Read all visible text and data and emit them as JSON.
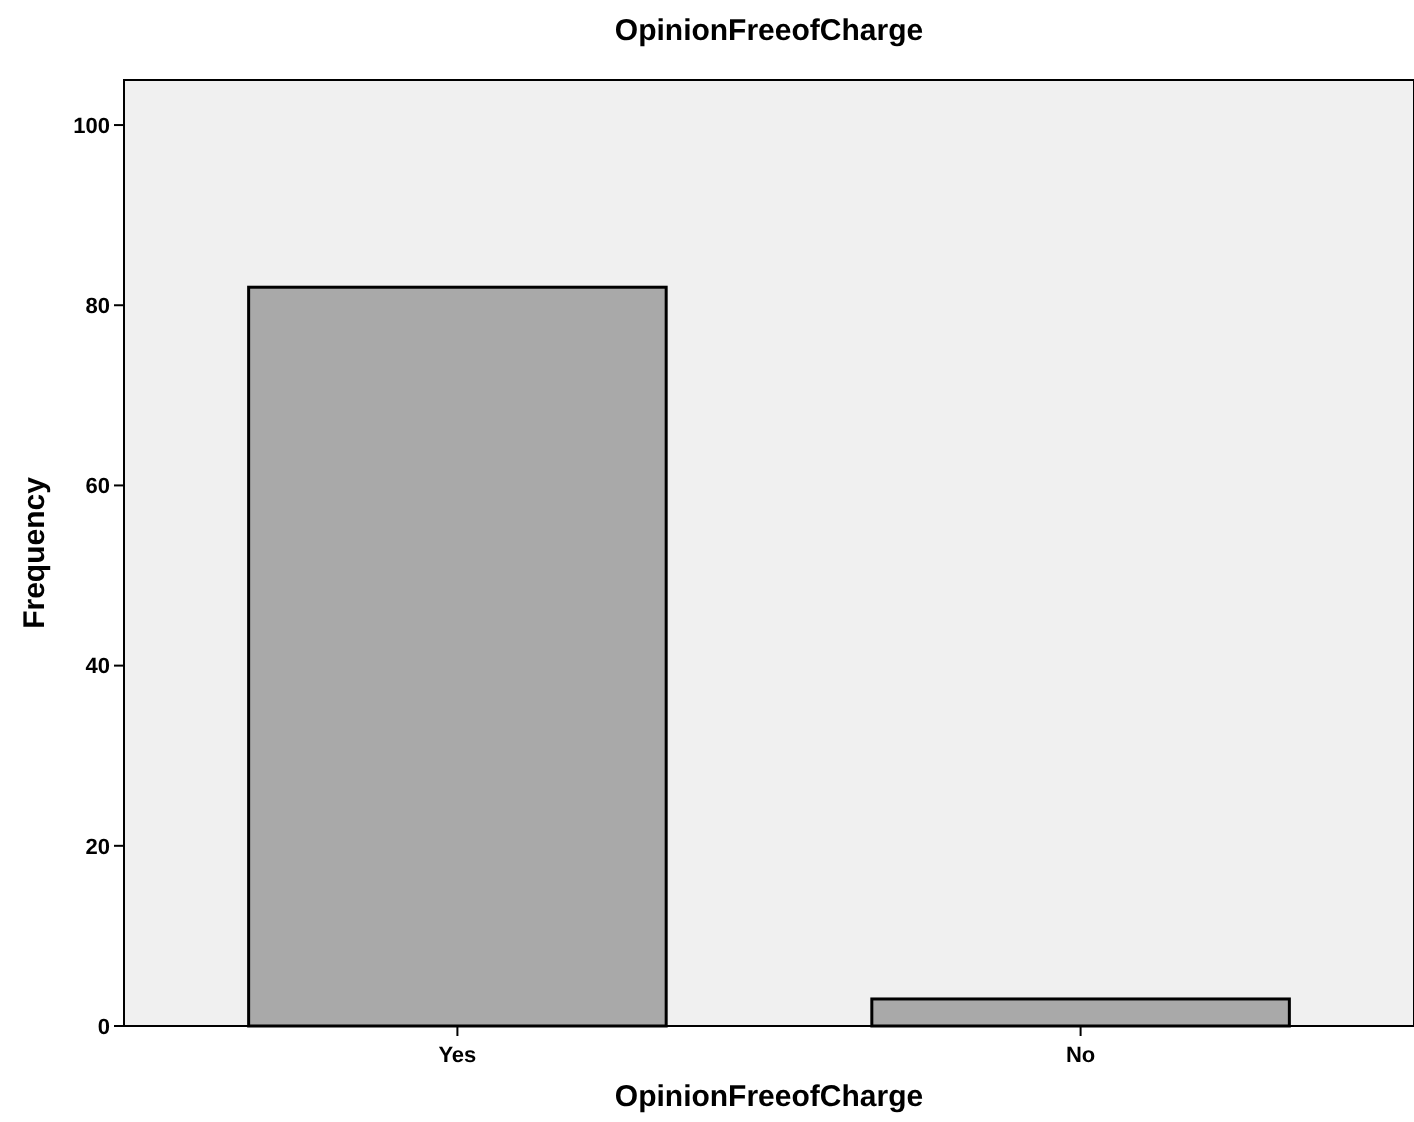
{
  "chart_data": {
    "type": "bar",
    "title": "OpinionFreeofCharge",
    "xlabel": "OpinionFreeofCharge",
    "ylabel": "Frequency",
    "categories": [
      "Yes",
      "No"
    ],
    "values": [
      82,
      3
    ],
    "color": "#a9a9a9",
    "ylim": [
      0,
      105
    ],
    "yticks": [
      0,
      20,
      40,
      60,
      80,
      100
    ],
    "grid": false
  }
}
